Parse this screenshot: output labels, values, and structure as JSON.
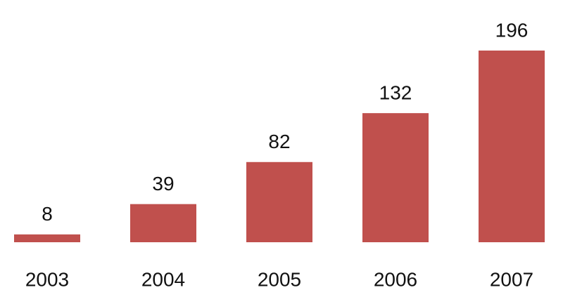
{
  "chart_data": {
    "type": "bar",
    "categories": [
      "2003",
      "2004",
      "2005",
      "2006",
      "2007"
    ],
    "values": [
      8,
      39,
      82,
      132,
      196
    ],
    "color": "#c0504d"
  }
}
